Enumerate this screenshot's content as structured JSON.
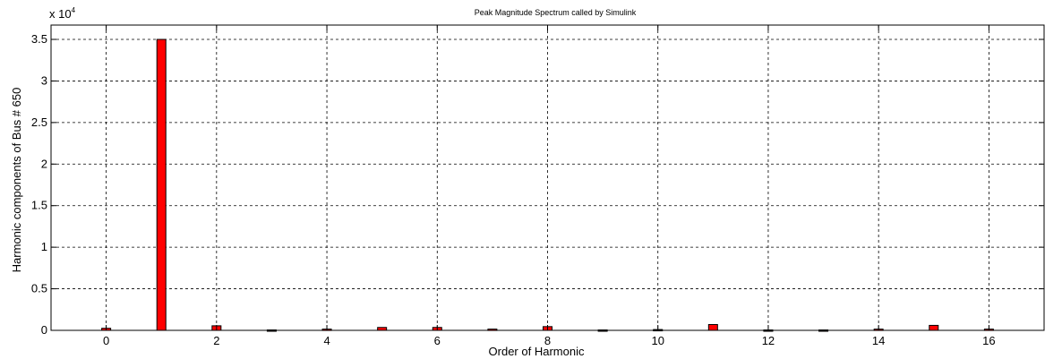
{
  "chart_data": {
    "type": "bar",
    "title": "Peak Magnitude Spectrum called by Simulink",
    "xlabel": "Order of Harmonic",
    "ylabel": "Harmonic components of Bus # 650",
    "y_multiplier": "x 10",
    "y_multiplier_exp": "4",
    "xlim": [
      -1,
      17
    ],
    "ylim": [
      0,
      3.5
    ],
    "x_ticks": [
      0,
      2,
      4,
      6,
      8,
      10,
      12,
      14,
      16
    ],
    "y_ticks": [
      0,
      0.5,
      1,
      1.5,
      2,
      2.5,
      3,
      3.5
    ],
    "x_tick_labels": [
      "0",
      "2",
      "4",
      "6",
      "8",
      "10",
      "12",
      "14",
      "16"
    ],
    "y_tick_labels": [
      "0",
      "0.5",
      "1",
      "1.5",
      "2",
      "2.5",
      "3",
      "3.5"
    ],
    "grid": true,
    "bar_color": "#ff0000",
    "x": [
      0,
      1,
      2,
      3,
      4,
      5,
      6,
      7,
      8,
      9,
      10,
      11,
      12,
      13,
      14,
      15,
      16
    ],
    "values": [
      0.025,
      3.5,
      0.055,
      0.005,
      0.015,
      0.035,
      0.035,
      0.015,
      0.045,
      0.005,
      0.01,
      0.07,
      0.005,
      0.005,
      0.015,
      0.06,
      0.015
    ]
  }
}
